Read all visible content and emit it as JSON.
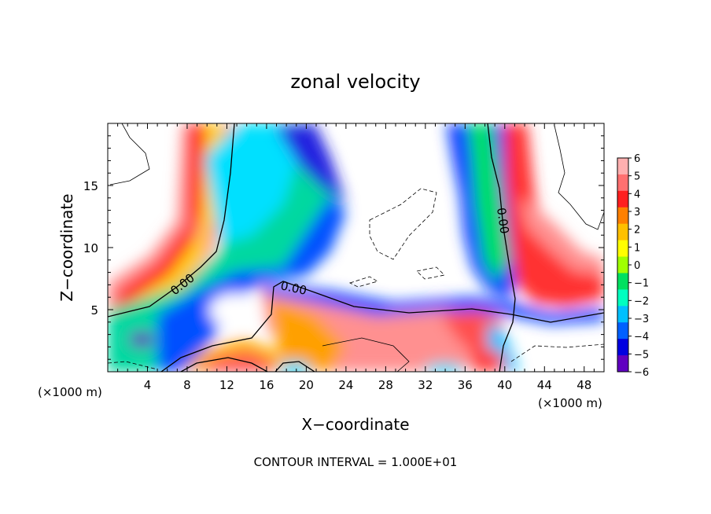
{
  "chart_data": {
    "type": "heatmap",
    "title": "zonal velocity",
    "xlabel": "X−coordinate",
    "ylabel": "Z−coordinate",
    "x_unit_label": "(×1000 m)",
    "y_unit_label": "(×1000 m)",
    "xlim": [
      0,
      50
    ],
    "ylim": [
      0,
      20
    ],
    "x_ticks": [
      "4",
      "8",
      "12",
      "16",
      "20",
      "24",
      "28",
      "32",
      "36",
      "40",
      "44",
      "48"
    ],
    "x_tick_values": [
      4,
      8,
      12,
      16,
      20,
      24,
      28,
      32,
      36,
      40,
      44,
      48
    ],
    "y_ticks": [
      "5",
      "10",
      "15"
    ],
    "y_tick_values": [
      5,
      10,
      15
    ],
    "colorbar": {
      "labels": [
        "6",
        "5",
        "4",
        "3",
        "2",
        "1",
        "0",
        "−1",
        "−2",
        "−3",
        "−4",
        "−5",
        "−6"
      ],
      "values": [
        6,
        5,
        4,
        3,
        2,
        1,
        0,
        -1,
        -2,
        -3,
        -4,
        -5,
        -6
      ],
      "colors": [
        "#ffb0b0",
        "#ff7070",
        "#ff2020",
        "#ff8000",
        "#ffc000",
        "#ffff00",
        "#a0ff00",
        "#00e060",
        "#00ffc0",
        "#00c0ff",
        "#0060ff",
        "#0000e0",
        "#6000c0"
      ]
    },
    "contour_labels": [
      "0.00",
      "0.00",
      "0.00"
    ],
    "note": "CONTOUR INTERVAL = 1.000E+01"
  }
}
